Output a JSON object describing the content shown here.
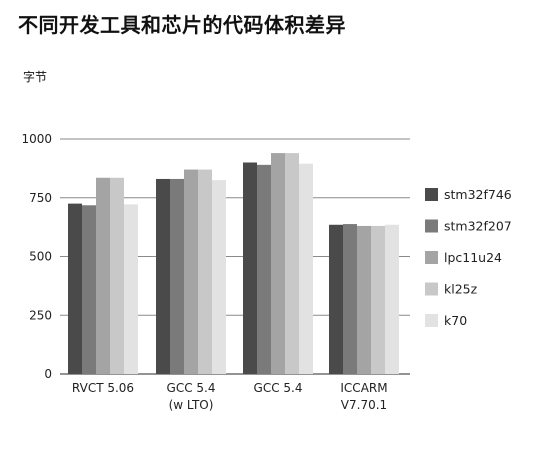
{
  "title": "不同开发工具和芯片的代码体积差异",
  "y_unit": "字节",
  "chart_data": {
    "type": "bar",
    "categories": [
      [
        "RVCT 5.06"
      ],
      [
        "GCC 5.4",
        "(w LTO)"
      ],
      [
        "GCC 5.4"
      ],
      [
        "ICCARM",
        "V7.70.1"
      ]
    ],
    "series": [
      {
        "name": "stm32f746",
        "color": "#4a4a4a",
        "values": [
          725,
          830,
          900,
          635
        ]
      },
      {
        "name": "stm32f207",
        "color": "#7a7a7a",
        "values": [
          718,
          830,
          890,
          638
        ]
      },
      {
        "name": "lpc11u24",
        "color": "#a4a4a4",
        "values": [
          835,
          870,
          940,
          630
        ]
      },
      {
        "name": "kl25z",
        "color": "#c8c8c8",
        "values": [
          835,
          870,
          940,
          630
        ]
      },
      {
        "name": "k70",
        "color": "#e2e2e2",
        "values": [
          722,
          825,
          895,
          635
        ]
      }
    ],
    "ylim": [
      0,
      1000
    ],
    "yticks": [
      0,
      250,
      500,
      750,
      1000
    ],
    "legend_position": "right",
    "grid": true
  }
}
